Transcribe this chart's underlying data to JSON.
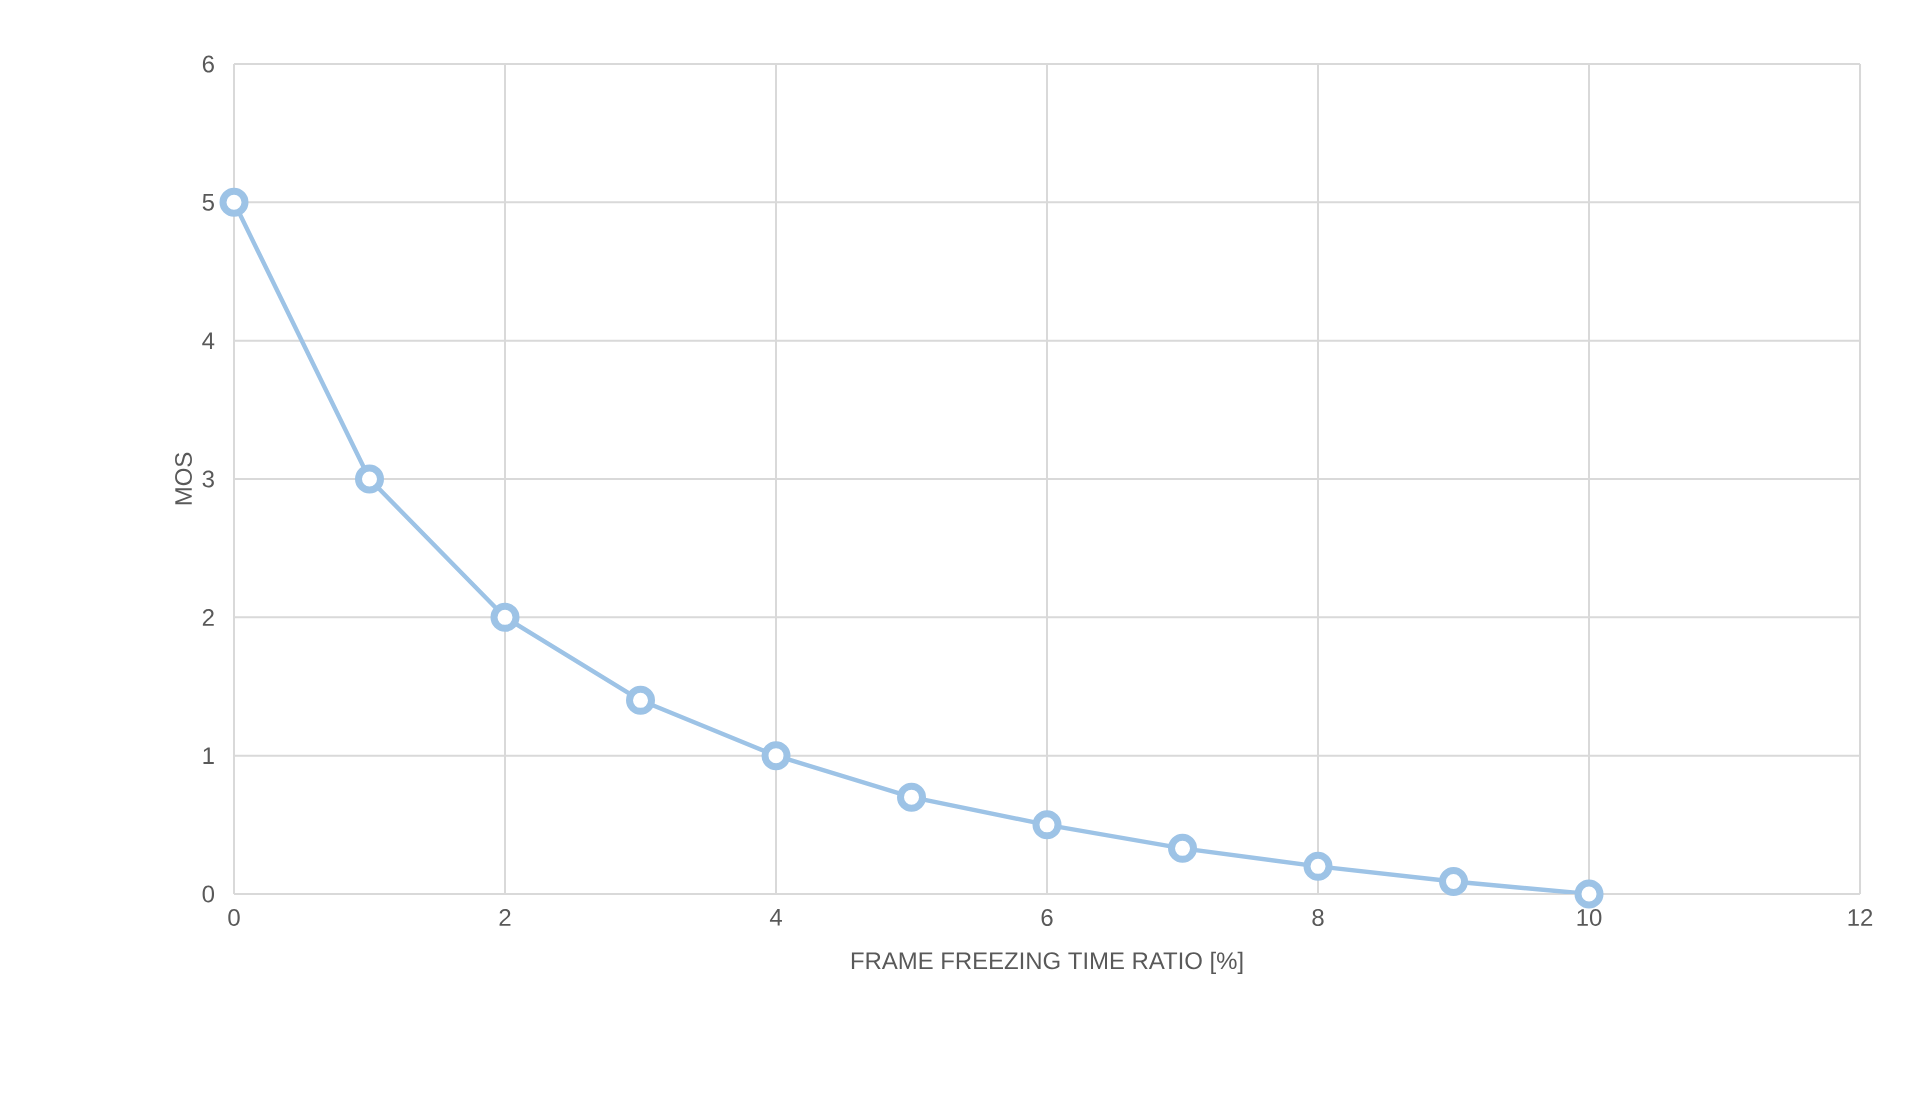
{
  "chart_data": {
    "type": "line",
    "xlabel": "FRAME FREEZING TIME RATIO [%]",
    "ylabel": "MOS",
    "x": [
      0,
      1,
      2,
      3,
      4,
      5,
      6,
      7,
      8,
      9,
      10
    ],
    "series": [
      {
        "color": "#9dc3e6",
        "values": [
          5,
          3,
          2,
          1.4,
          1,
          0.7,
          0.5,
          0.33,
          0.2,
          0.09,
          0
        ]
      }
    ],
    "xlim": [
      0,
      12
    ],
    "xticks": [
      0,
      2,
      4,
      6,
      8,
      10,
      12
    ],
    "ylim": [
      0,
      6
    ],
    "yticks": [
      0,
      1,
      2,
      3,
      4,
      5,
      6
    ],
    "grid": true,
    "marker": "circle",
    "line_style": "solid"
  }
}
